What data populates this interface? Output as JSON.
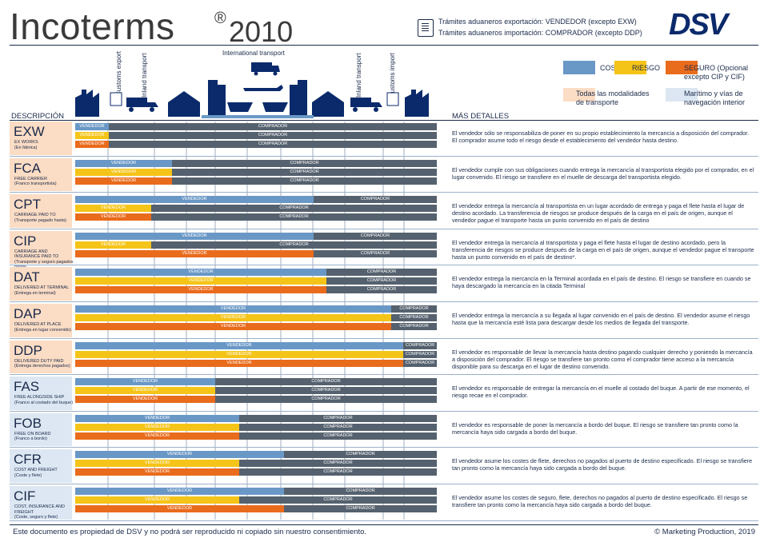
{
  "header": {
    "title": "Incoterms",
    "registered_mark": "®",
    "year": "2010",
    "customs_export_note": "Trámites aduaneros exportación: VENDEDOR (excepto EXW)",
    "customs_import_note": "Trámites aduaneros importación: COMPRADOR (excepto DDP)",
    "logo_text": "DSV"
  },
  "colors": {
    "costs": "#6a98c6",
    "risk": "#f5c418",
    "insurance": "#e96b1c",
    "buyer": "#55616e",
    "all_modes": "#fbdcc4",
    "sea": "#dce7f3",
    "navy": "#1a2a4a"
  },
  "legend": {
    "costs": "COSTES",
    "risk": "RIESGO",
    "insurance": "SEGURO (Opcional excepto CIP y CIF)",
    "all_modes": "Todas las modalidades de transporte",
    "sea": "Marítimo y vías de navegación interior"
  },
  "columns": {
    "description": "DESCRIPCIÓN",
    "details": "MÁS DETALLES"
  },
  "transport_labels": {
    "international": "International transport",
    "customs_export": "Customs export",
    "inland_transport_left": "Inland transport",
    "inland_transport_right": "Inland transport",
    "customs_import": "Customs import"
  },
  "terms": [
    {
      "code": "EXW",
      "name": "EX WORKS",
      "sub": "(En fábrica)",
      "mode": "all",
      "bars": [
        {
          "split": 0.092,
          "seller": "VENDEDOR",
          "buyer": "COMPRADOR"
        },
        {
          "split": 0.092,
          "seller": "VENDEDOR",
          "buyer": "COMPRADOR"
        },
        {
          "split": 0.092,
          "seller": "VENDEDOR",
          "buyer": "COMPRADOR"
        }
      ],
      "details": "El vendedor sólo se responsabiliza de poner en su propio establecimiento la mercancía a disposición del comprador. El comprador asume todo el riesgo desde el establecimiento del vendedor hasta destino."
    },
    {
      "code": "FCA",
      "name": "FREE CARRIER",
      "sub": "(Franco transportista)",
      "mode": "all",
      "bars": [
        {
          "split": 0.268,
          "seller": "VENDEDOR",
          "buyer": "COMPRADOR"
        },
        {
          "split": 0.268,
          "seller": "VENDEDOR",
          "buyer": "COMPRADOR"
        },
        {
          "split": 0.268,
          "seller": "VENDEDOR",
          "buyer": "COMPRADOR"
        }
      ],
      "details": "El vendedor cumple con sus obligaciones cuando entrega la mercancía al transportista elegido por el comprador, en el lugar convenido. El riesgo se transfiere en el muelle de descarga del transportista elegido."
    },
    {
      "code": "CPT",
      "name": "CARRIAGE PAID TO",
      "sub": "(Transporte pagado hasta)",
      "mode": "all",
      "bars": [
        {
          "split": 0.66,
          "seller": "VENDEDOR",
          "buyer": "COMPRADOR"
        },
        {
          "split": 0.21,
          "seller": "VENDEDOR",
          "buyer": "COMPRADOR"
        },
        {
          "split": 0.21,
          "seller": "VENDEDOR",
          "buyer": "COMPRADOR"
        }
      ],
      "details": "El vendedor entrega la mercancía al transportista en un lugar acordado de entrega y paga el flete hasta el lugar de destino acordado. La transferencia de riesgos se produce después de la carga en el país de origen, aunque el vendedor pague el transporte hasta un punto convenido en el país de destino"
    },
    {
      "code": "CIP",
      "name": "CARRIAGE AND INSURANCE PAID TO",
      "sub": "(Transporte y seguro pagados hasta)",
      "mode": "all",
      "bars": [
        {
          "split": 0.66,
          "seller": "VENDEDOR",
          "buyer": "COMPRADOR"
        },
        {
          "split": 0.21,
          "seller": "VENDEDOR",
          "buyer": "COMPRADOR"
        },
        {
          "split": 0.66,
          "seller": "VENDEDOR",
          "buyer": "COMPRADOR"
        }
      ],
      "details": "El vendedor entrega la mercancía al transportista y paga el flete hasta el lugar de destino acordado, pero la transferencia de riesgos se produce después de la carga en el país de origen, aunque el vendedor pague el transporte hasta un punto convenido en el país de destino*."
    },
    {
      "code": "DAT",
      "name": "DELIVERED AT TERMINAL",
      "sub": "(Entrega en terminal)",
      "mode": "all",
      "bars": [
        {
          "split": 0.695,
          "seller": "VENDEDOR",
          "buyer": "COMPRADOR"
        },
        {
          "split": 0.695,
          "seller": "VENDEDOR",
          "buyer": "COMPRADOR"
        },
        {
          "split": 0.695,
          "seller": "VENDEDOR",
          "buyer": "COMPRADOR"
        }
      ],
      "details": "El vendedor entrega la mercancía en la Terminal acordada en el país de destino. El riesgo se transfiere en cuando se haya descargado la mercancía en la citada Terminal"
    },
    {
      "code": "DAP",
      "name": "DELIVERED AT PLACE",
      "sub": "(Entrega en lugar convenido)",
      "mode": "all",
      "bars": [
        {
          "split": 0.874,
          "seller": "VENDEDOR",
          "buyer": "COMPRADOR"
        },
        {
          "split": 0.874,
          "seller": "VENDEDOR",
          "buyer": "COMPRADOR"
        },
        {
          "split": 0.874,
          "seller": "VENDEDOR",
          "buyer": "COMPRADOR"
        }
      ],
      "details": "El vendedor entrega la mercancía a su llegada al lugar convenido en el país de destino. El vendedor asume el riesgo hasta que la mercancía esté lista para descargar desde los medios de llegada del transporte."
    },
    {
      "code": "DDP",
      "name": "DELIVERED DUTY PAID",
      "sub": "(Entrega derechos pagados)",
      "mode": "all",
      "bars": [
        {
          "split": 0.908,
          "seller": "VENDEDOR",
          "buyer": "COMPRADOR"
        },
        {
          "split": 0.908,
          "seller": "VENDEDOR",
          "buyer": "COMPRADOR"
        },
        {
          "split": 0.908,
          "seller": "VENDEDOR",
          "buyer": "COMPRADOR"
        }
      ],
      "details": "El vendedor es responsable de llevar la mercancía hasta destino pagando cualquier derecho y poniendo la mercancía a disposición del comprador. El riesgo se transfiere tan pronto como el comprador tiene acceso a la mercancía disponible para su descarga en el lugar de destino convenido."
    },
    {
      "code": "FAS",
      "name": "FREE ALONGSIDE SHIP",
      "sub": "(Franco al costado del buque)",
      "mode": "sea",
      "bars": [
        {
          "split": 0.387,
          "seller": "VENDEDOR",
          "buyer": "COMPRADOR"
        },
        {
          "split": 0.387,
          "seller": "VENDEDOR",
          "buyer": "COMPRADOR"
        },
        {
          "split": 0.387,
          "seller": "VENDEDOR",
          "buyer": "COMPRADOR"
        }
      ],
      "details": "El vendedor es responsable de entregar la mercancía en el muelle al costado del buque. A partir de ese momento, el riesgo recae en el comprador."
    },
    {
      "code": "FOB",
      "name": "FREE ON BOARD",
      "sub": "(Franco a bordo)",
      "mode": "sea",
      "bars": [
        {
          "split": 0.453,
          "seller": "VENDEDOR",
          "buyer": "COMPRADOR"
        },
        {
          "split": 0.453,
          "seller": "VENDEDOR",
          "buyer": "COMPRADOR"
        },
        {
          "split": 0.453,
          "seller": "VENDEDOR",
          "buyer": "COMPRADOR"
        }
      ],
      "details": "El vendedor es responsable de poner la mercancía a bordo del buque. El riesgo se transfiere tan pronto como la mercancía haya sido cargada a bordo del buque."
    },
    {
      "code": "CFR",
      "name": "COST AND FREIGHT",
      "sub": "(Coste y flete)",
      "mode": "sea",
      "bars": [
        {
          "split": 0.578,
          "seller": "VENDEDOR",
          "buyer": "COMPRADOR"
        },
        {
          "split": 0.453,
          "seller": "VENDEDOR",
          "buyer": "COMPRADOR"
        },
        {
          "split": 0.453,
          "seller": "VENDEDOR",
          "buyer": "COMPRADOR"
        }
      ],
      "details": "El vendedor asume los costes de flete, derechos no pagados al puerto de destino especificado. El riesgo se transfiere tan pronto como la mercancía haya sido cargada a bordo del buque."
    },
    {
      "code": "CIF",
      "name": "COST, INSURANCE AND FREIGHT",
      "sub": "(Coste, seguro y flete)",
      "mode": "sea",
      "bars": [
        {
          "split": 0.578,
          "seller": "VENDEDOR",
          "buyer": "COMPRADOR"
        },
        {
          "split": 0.453,
          "seller": "VENDEDOR",
          "buyer": "COMPRADOR"
        },
        {
          "split": 0.578,
          "seller": "VENDEDOR",
          "buyer": "COMPRADOR"
        }
      ],
      "details": "El vendedor asume los costes de seguro, flete, derechos no pagados al puerto de destino especificado. El riesgo se transfiere tan pronto como la mercancía haya sido cargada a bordo del buque."
    }
  ],
  "footer": {
    "copyright_notice": "Este documento es propiedad de DSV y no podrá ser reproducido ni copiado sin nuestro consentimiento.",
    "credit": "© Marketing Production, 2019"
  }
}
